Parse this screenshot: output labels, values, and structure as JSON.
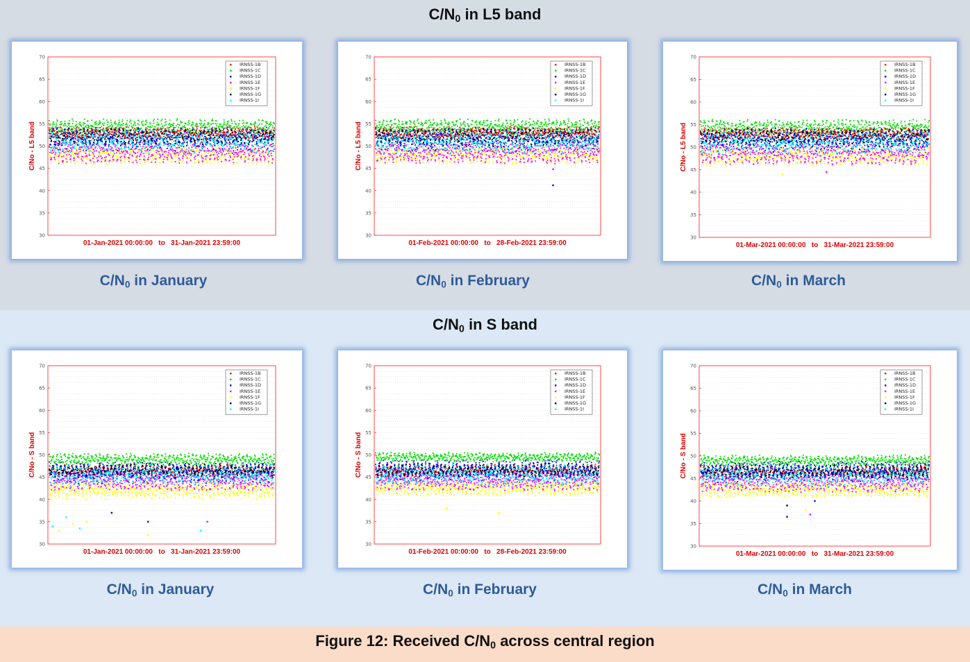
{
  "band_titles": {
    "l5": {
      "prefix": "C/N",
      "sub": "0",
      "suffix": " in L5 band"
    },
    "s": {
      "prefix": "C/N",
      "sub": "0",
      "suffix": " in S band"
    }
  },
  "figure_caption": {
    "prefix": "Figure 12: Received C/N",
    "sub": "0",
    "suffix": " across central region"
  },
  "captions": [
    {
      "prefix": "C/N",
      "sub": "0",
      "suffix": " in January"
    },
    {
      "prefix": "C/N",
      "sub": "0",
      "suffix": " in February"
    },
    {
      "prefix": "C/N",
      "sub": "0",
      "suffix": " in March"
    },
    {
      "prefix": "C/N",
      "sub": "0",
      "suffix": " in January"
    },
    {
      "prefix": "C/N",
      "sub": "0",
      "suffix": " in February"
    },
    {
      "prefix": "C/N",
      "sub": "0",
      "suffix": " in March"
    }
  ],
  "series_colors": {
    "IRNSS-1B": "#ff0000",
    "IRNSS-1C": "#00e000",
    "IRNSS-1D": "#0000ff",
    "IRNSS-1E": "#ff00ff",
    "IRNSS-1F": "#ffff00",
    "IRNSS-1G": "#000000",
    "IRNSS-1I": "#00ffff"
  },
  "chart_data": [
    {
      "type": "scatter",
      "band": "L5",
      "ylabel": "C/No - L5 band",
      "xlabel": "01-Jan-2021 00:00:00   to   31-Jan-2021 23:59:00",
      "ylim": [
        30,
        70
      ],
      "yticks": [
        "30",
        "35",
        "40",
        "45",
        "50",
        "55",
        "60",
        "65",
        "70"
      ],
      "grid": true,
      "legend_placement": "top-right",
      "series": [
        {
          "name": "IRNSS-1B",
          "center": 53.0,
          "spread": 1.0
        },
        {
          "name": "IRNSS-1C",
          "center": 54.5,
          "spread": 1.2
        },
        {
          "name": "IRNSS-1D",
          "center": 51.5,
          "spread": 2.0
        },
        {
          "name": "IRNSS-1E",
          "center": 48.5,
          "spread": 1.8
        },
        {
          "name": "IRNSS-1F",
          "center": 48.0,
          "spread": 1.6
        },
        {
          "name": "IRNSS-1G",
          "center": 52.0,
          "spread": 1.5
        },
        {
          "name": "IRNSS-1I",
          "center": 51.0,
          "spread": 2.0
        }
      ],
      "outliers": []
    },
    {
      "type": "scatter",
      "band": "L5",
      "ylabel": "C/No - L5 band",
      "xlabel": "01-Feb-2021 00:00:00   to   28-Feb-2021 23:59:00",
      "ylim": [
        30,
        70
      ],
      "yticks": [
        "30",
        "35",
        "40",
        "45",
        "50",
        "55",
        "60",
        "65",
        "70"
      ],
      "grid": true,
      "legend_placement": "top-right",
      "series": [
        {
          "name": "IRNSS-1B",
          "center": 53.0,
          "spread": 1.0
        },
        {
          "name": "IRNSS-1C",
          "center": 54.5,
          "spread": 1.2
        },
        {
          "name": "IRNSS-1D",
          "center": 51.5,
          "spread": 2.0
        },
        {
          "name": "IRNSS-1E",
          "center": 48.5,
          "spread": 1.8
        },
        {
          "name": "IRNSS-1F",
          "center": 48.0,
          "spread": 1.6
        },
        {
          "name": "IRNSS-1G",
          "center": 52.0,
          "spread": 1.5
        },
        {
          "name": "IRNSS-1I",
          "center": 51.0,
          "spread": 2.0
        }
      ],
      "outliers": [
        {
          "x": 0.79,
          "y": 41.2,
          "series": "IRNSS-1D"
        },
        {
          "x": 0.79,
          "y": 44.8,
          "series": "IRNSS-1E"
        }
      ]
    },
    {
      "type": "scatter",
      "band": "L5",
      "ylabel": "C/No - L5 band",
      "xlabel": "01-Mar-2021 00:00:00   to   31-Mar-2021 23:59:00",
      "ylim": [
        30,
        70
      ],
      "yticks": [
        "30",
        "35",
        "40",
        "45",
        "50",
        "55",
        "60",
        "65",
        "70"
      ],
      "grid": true,
      "legend_placement": "top-right",
      "series": [
        {
          "name": "IRNSS-1B",
          "center": 53.0,
          "spread": 1.0
        },
        {
          "name": "IRNSS-1C",
          "center": 54.5,
          "spread": 1.2
        },
        {
          "name": "IRNSS-1D",
          "center": 51.5,
          "spread": 2.0
        },
        {
          "name": "IRNSS-1E",
          "center": 48.5,
          "spread": 1.8
        },
        {
          "name": "IRNSS-1F",
          "center": 48.0,
          "spread": 1.6
        },
        {
          "name": "IRNSS-1G",
          "center": 52.0,
          "spread": 1.5
        },
        {
          "name": "IRNSS-1I",
          "center": 51.0,
          "spread": 2.0
        }
      ],
      "outliers": [
        {
          "x": 0.36,
          "y": 44.0,
          "series": "IRNSS-1F"
        },
        {
          "x": 0.55,
          "y": 44.5,
          "series": "IRNSS-1E"
        }
      ]
    },
    {
      "type": "scatter",
      "band": "S",
      "ylabel": "C/No - S band",
      "xlabel": "01-Jan-2021 00:00:00   to   31-Jan-2021 23:59:00",
      "ylim": [
        30,
        70
      ],
      "yticks": [
        "30",
        "35",
        "40",
        "45",
        "50",
        "55",
        "60",
        "65",
        "70"
      ],
      "grid": true,
      "legend_placement": "top-right",
      "series": [
        {
          "name": "IRNSS-1B",
          "center": 46.5,
          "spread": 1.0
        },
        {
          "name": "IRNSS-1C",
          "center": 49.0,
          "spread": 1.0
        },
        {
          "name": "IRNSS-1D",
          "center": 46.0,
          "spread": 1.8
        },
        {
          "name": "IRNSS-1E",
          "center": 44.0,
          "spread": 1.5
        },
        {
          "name": "IRNSS-1F",
          "center": 42.0,
          "spread": 1.5
        },
        {
          "name": "IRNSS-1G",
          "center": 46.5,
          "spread": 1.2
        },
        {
          "name": "IRNSS-1I",
          "center": 45.5,
          "spread": 1.8
        }
      ],
      "outliers": [
        {
          "x": 0.02,
          "y": 34.0,
          "series": "IRNSS-1I"
        },
        {
          "x": 0.05,
          "y": 33.0,
          "series": "IRNSS-1F"
        },
        {
          "x": 0.08,
          "y": 36.0,
          "series": "IRNSS-1I"
        },
        {
          "x": 0.11,
          "y": 34.5,
          "series": "IRNSS-1F"
        },
        {
          "x": 0.14,
          "y": 33.5,
          "series": "IRNSS-1I"
        },
        {
          "x": 0.17,
          "y": 35.0,
          "series": "IRNSS-1F"
        },
        {
          "x": 0.28,
          "y": 37.0,
          "series": "IRNSS-1D"
        },
        {
          "x": 0.44,
          "y": 35.0,
          "series": "IRNSS-1D"
        },
        {
          "x": 0.44,
          "y": 32.0,
          "series": "IRNSS-1F"
        },
        {
          "x": 0.67,
          "y": 33.0,
          "series": "IRNSS-1I"
        },
        {
          "x": 0.7,
          "y": 35.0,
          "series": "IRNSS-1E"
        }
      ]
    },
    {
      "type": "scatter",
      "band": "S",
      "ylabel": "C/No - S band",
      "xlabel": "01-Feb-2021 00:00:00   to   28-Feb-2021 23:59:00",
      "ylim": [
        30,
        70
      ],
      "yticks": [
        "30",
        "35",
        "40",
        "45",
        "50",
        "55",
        "60",
        "65",
        "70"
      ],
      "grid": true,
      "legend_placement": "top-right",
      "series": [
        {
          "name": "IRNSS-1B",
          "center": 46.5,
          "spread": 1.0
        },
        {
          "name": "IRNSS-1C",
          "center": 49.5,
          "spread": 0.8
        },
        {
          "name": "IRNSS-1D",
          "center": 46.5,
          "spread": 1.8
        },
        {
          "name": "IRNSS-1E",
          "center": 44.0,
          "spread": 1.5
        },
        {
          "name": "IRNSS-1F",
          "center": 42.5,
          "spread": 1.3
        },
        {
          "name": "IRNSS-1G",
          "center": 46.5,
          "spread": 1.2
        },
        {
          "name": "IRNSS-1I",
          "center": 45.5,
          "spread": 1.8
        }
      ],
      "outliers": [
        {
          "x": 0.32,
          "y": 38.0,
          "series": "IRNSS-1F"
        },
        {
          "x": 0.55,
          "y": 37.0,
          "series": "IRNSS-1F"
        }
      ]
    },
    {
      "type": "scatter",
      "band": "S",
      "ylabel": "C/No - S band",
      "xlabel": "01-Mar-2021 00:00:00   to   31-Mar-2021 23:59:00",
      "ylim": [
        30,
        70
      ],
      "yticks": [
        "30",
        "35",
        "40",
        "45",
        "50",
        "55",
        "60",
        "65",
        "70"
      ],
      "grid": true,
      "legend_placement": "top-right",
      "series": [
        {
          "name": "IRNSS-1B",
          "center": 46.5,
          "spread": 1.0
        },
        {
          "name": "IRNSS-1C",
          "center": 49.0,
          "spread": 0.9
        },
        {
          "name": "IRNSS-1D",
          "center": 46.5,
          "spread": 1.8
        },
        {
          "name": "IRNSS-1E",
          "center": 44.0,
          "spread": 1.5
        },
        {
          "name": "IRNSS-1F",
          "center": 42.5,
          "spread": 1.3
        },
        {
          "name": "IRNSS-1G",
          "center": 46.5,
          "spread": 1.2
        },
        {
          "name": "IRNSS-1I",
          "center": 45.5,
          "spread": 1.8
        }
      ],
      "outliers": [
        {
          "x": 0.38,
          "y": 36.5,
          "series": "IRNSS-1D"
        },
        {
          "x": 0.38,
          "y": 39.0,
          "series": "IRNSS-1G"
        },
        {
          "x": 0.46,
          "y": 38.0,
          "series": "IRNSS-1F"
        },
        {
          "x": 0.48,
          "y": 37.0,
          "series": "IRNSS-1E"
        },
        {
          "x": 0.5,
          "y": 40.0,
          "series": "IRNSS-1D"
        }
      ]
    }
  ]
}
